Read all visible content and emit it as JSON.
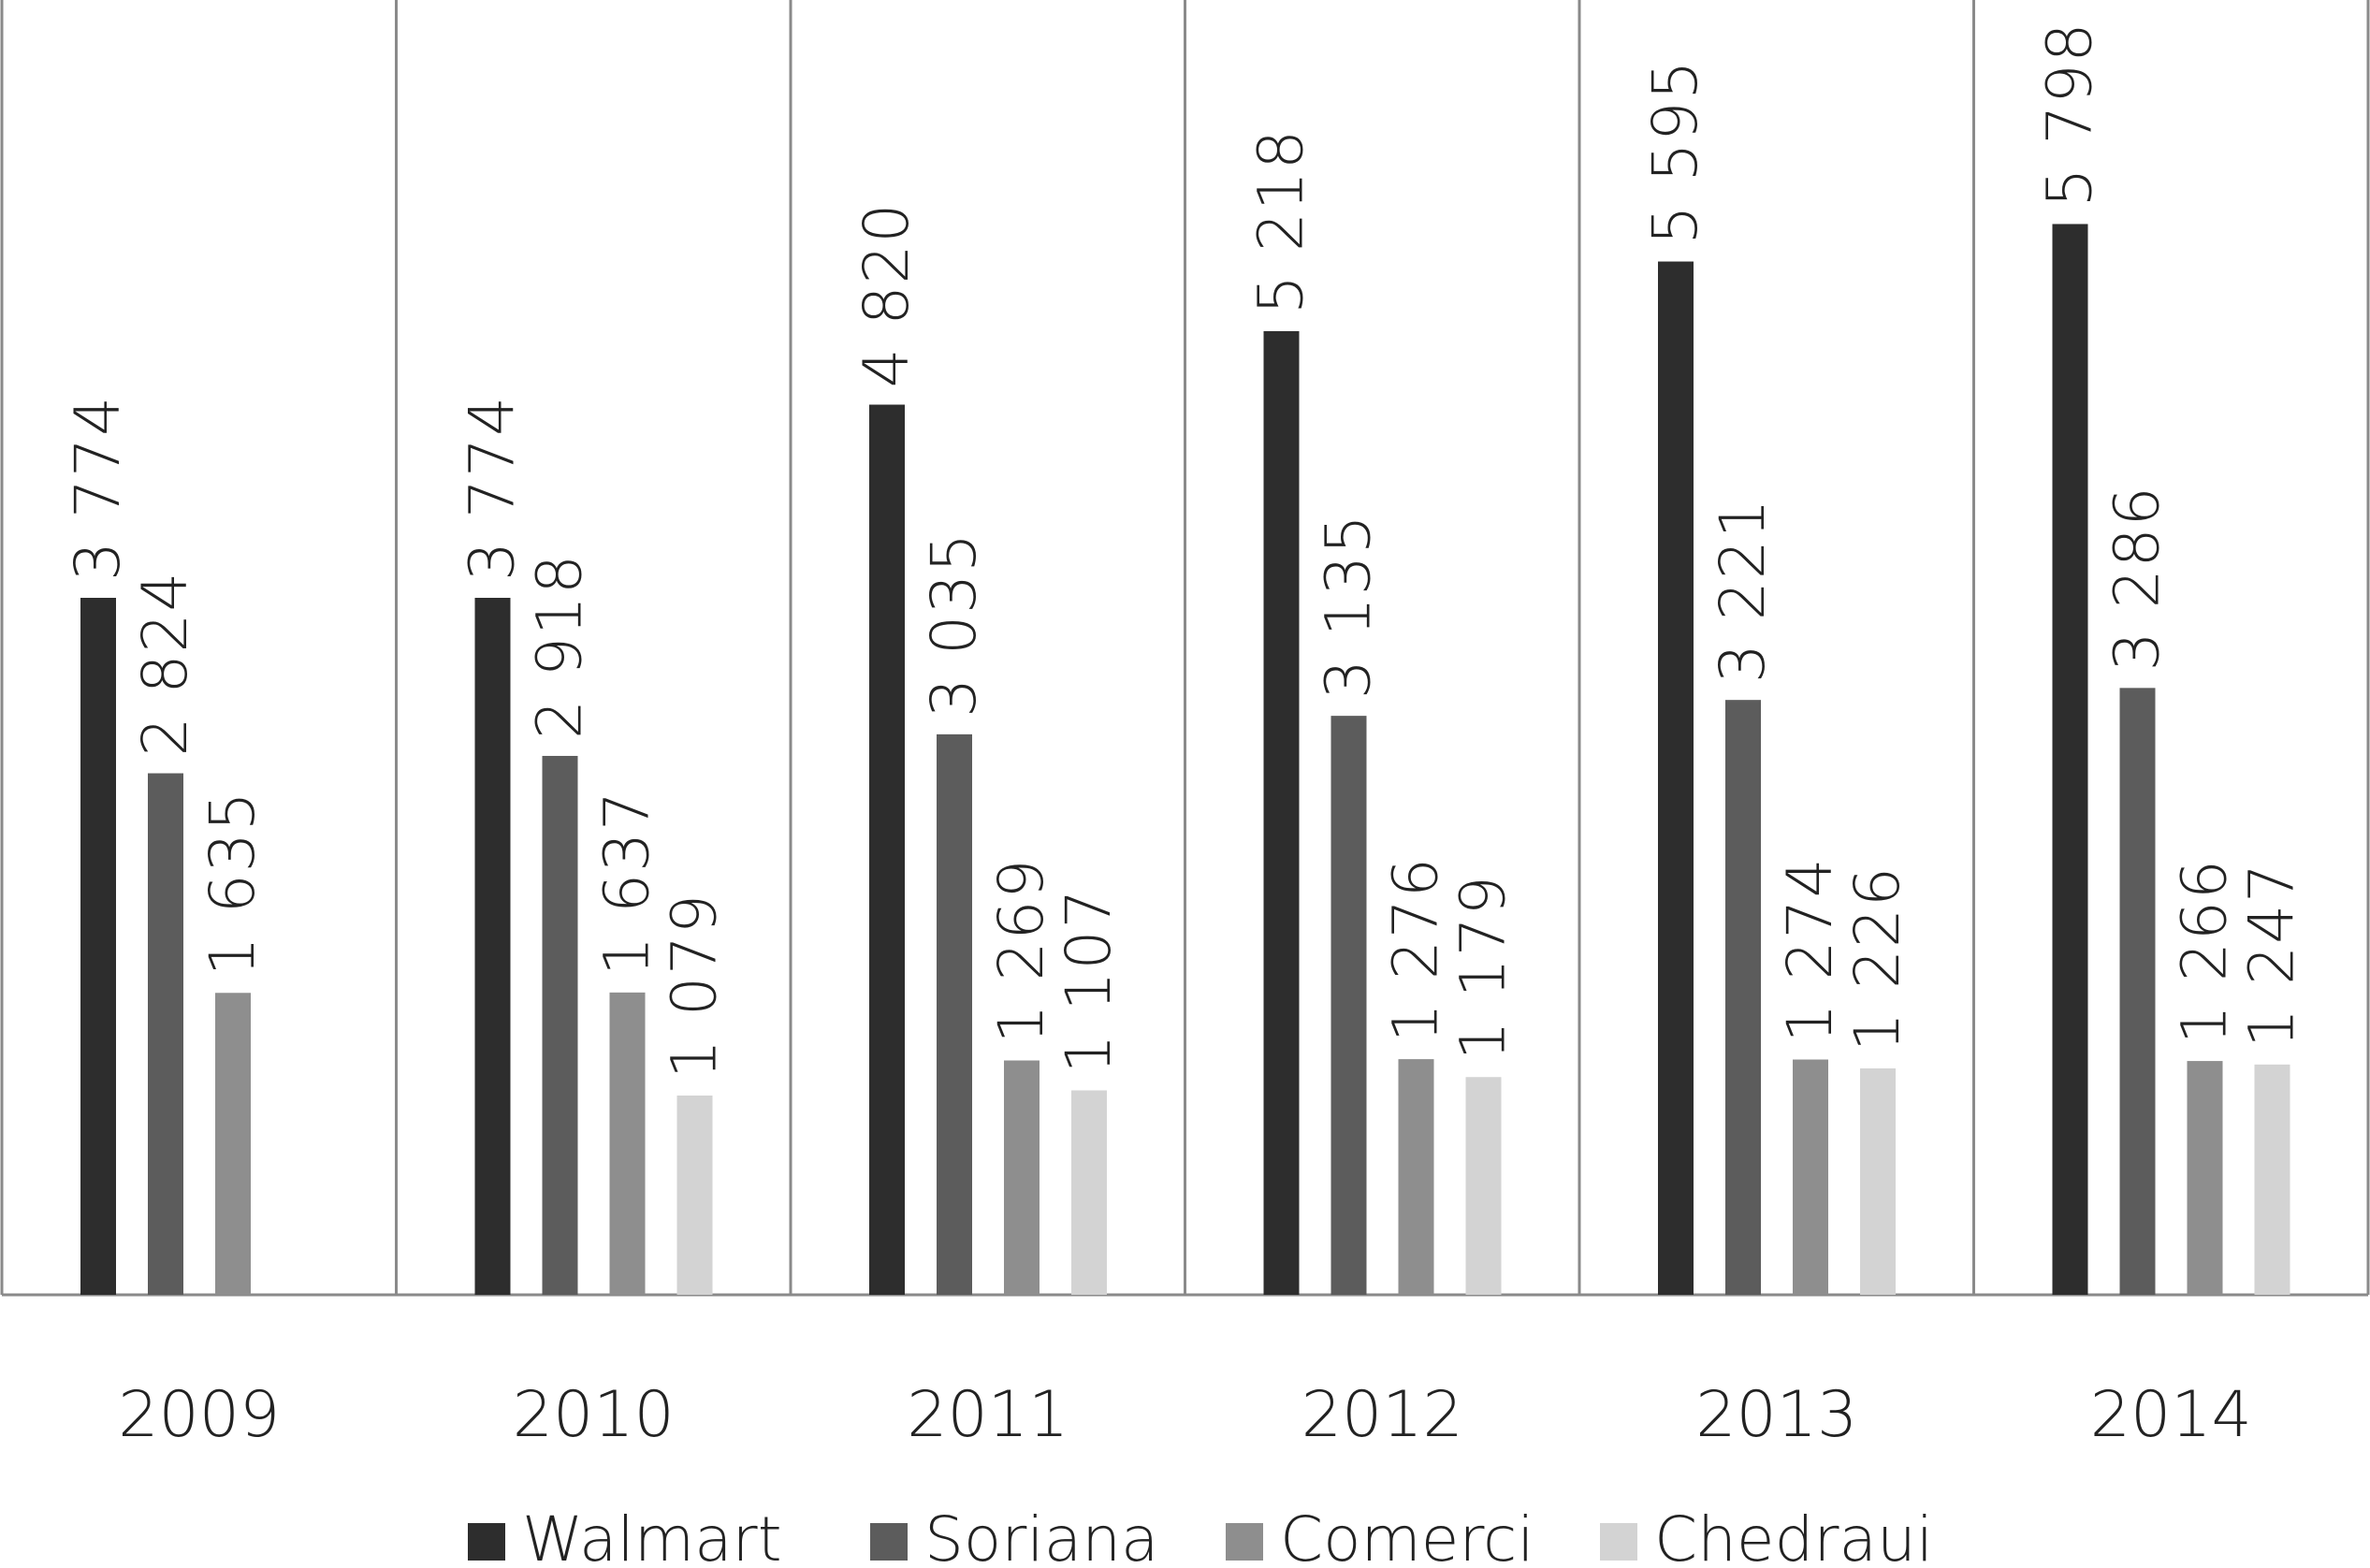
{
  "chart_data": {
    "type": "bar",
    "title": "",
    "xlabel": "",
    "ylabel": "",
    "ylim": [
      0,
      6000
    ],
    "grid": false,
    "legend_position": "bottom",
    "categories": [
      "2009",
      "2010",
      "2011",
      "2012",
      "2013",
      "2014"
    ],
    "series": [
      {
        "name": "Walmart",
        "color": "#2d2d2d",
        "values": [
          3774,
          3774,
          4820,
          5218,
          5595,
          5798
        ],
        "labels": [
          "3 774",
          "3 774",
          "4 820",
          "5 218",
          "5 595",
          "5 798"
        ]
      },
      {
        "name": "Soriana",
        "color": "#5c5c5c",
        "values": [
          2824,
          2918,
          3035,
          3135,
          3221,
          3286
        ],
        "labels": [
          "2 824",
          "2 918",
          "3 035",
          "3 135",
          "3 221",
          "3 286"
        ]
      },
      {
        "name": "Comerci",
        "color": "#8e8e8e",
        "values": [
          1635,
          1637,
          1269,
          1276,
          1274,
          1266
        ],
        "labels": [
          "1 635",
          "1 637",
          "1 269",
          "1 276",
          "1 274",
          "1 266"
        ]
      },
      {
        "name": "Chedraui",
        "color": "#d3d3d3",
        "values": [
          null,
          1079,
          1107,
          1179,
          1226,
          1247
        ],
        "labels": [
          "",
          "1 079",
          "1 107",
          "1 179",
          "1 226",
          "1 247"
        ]
      }
    ],
    "value_labels_rotated": true
  }
}
